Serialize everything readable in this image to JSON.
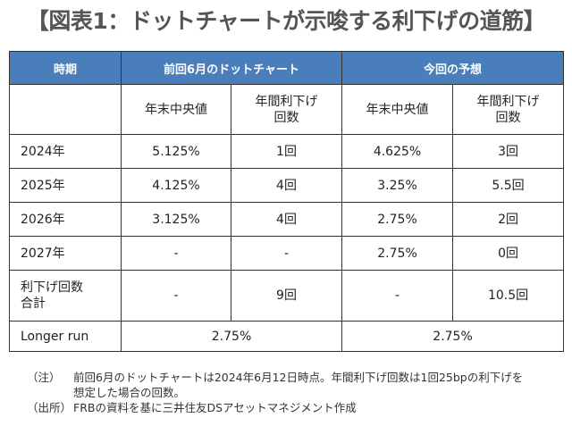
{
  "title": "【図表1：ドットチャートが示唆する利下げの道筋】",
  "header": {
    "period": "時期",
    "previous": "前回6月のドットチャート",
    "current": "今回の予想"
  },
  "subheader": {
    "prev_median": "年末中央値",
    "prev_cuts": [
      "年間利下げ",
      "回数"
    ],
    "cur_median": "年末中央値",
    "cur_cuts": [
      "年間利下げ",
      "回数"
    ]
  },
  "rows": [
    {
      "period": "2024年",
      "prev_median": "5.125%",
      "prev_cuts": "1回",
      "cur_median": "4.625%",
      "cur_cuts": "3回"
    },
    {
      "period": "2025年",
      "prev_median": "4.125%",
      "prev_cuts": "4回",
      "cur_median": "3.25%",
      "cur_cuts": "5.5回"
    },
    {
      "period": "2026年",
      "prev_median": "3.125%",
      "prev_cuts": "4回",
      "cur_median": "2.75%",
      "cur_cuts": "2回"
    },
    {
      "period": "2027年",
      "prev_median": "-",
      "prev_cuts": "-",
      "cur_median": "2.75%",
      "cur_cuts": "0回"
    }
  ],
  "total": {
    "period": [
      "利下げ回数",
      "合計"
    ],
    "prev_median": "-",
    "prev_cuts": "9回",
    "cur_median": "-",
    "cur_cuts": "10.5回"
  },
  "longer_run": {
    "period": "Longer run",
    "prev": "2.75%",
    "cur": "2.75%"
  },
  "notes": [
    {
      "key": "（注）",
      "lines": [
        "前回6月のドットチャートは2024年6月12日時点。年間利下げ回数は1回25bpの利下げを",
        "想定した場合の回数。"
      ]
    },
    {
      "key": "（出所）",
      "lines": [
        "FRBの資料を基に三井住友DSアセットマネジメント作成"
      ]
    }
  ],
  "colors": {
    "header_bg": "#4a7ebb",
    "title": "#555555"
  }
}
